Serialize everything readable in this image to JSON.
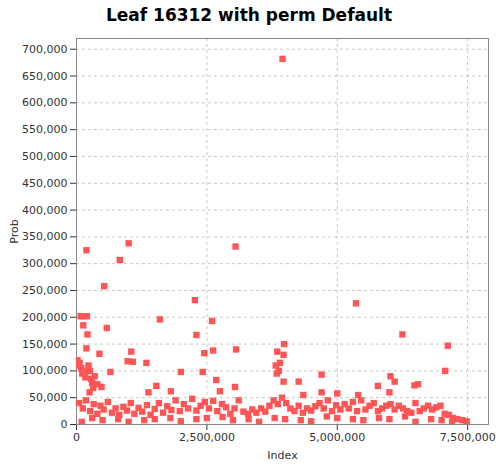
{
  "chart_data": {
    "type": "scatter",
    "title": "Leaf 16312 with perm Default",
    "x_label": "Index",
    "y_label": "Prob",
    "color": "#ff5555",
    "marker": "square",
    "grid": true,
    "xlim": [
      0,
      7900000
    ],
    "ylim": [
      0,
      720000
    ],
    "xticks": [
      0,
      {
        "value": 2500000,
        "label": "2,500,000"
      },
      {
        "value": 5000000,
        "label": "5,000,000"
      },
      {
        "value": 7500000,
        "label": "7,500,000"
      }
    ],
    "yticks": [
      0,
      {
        "value": 50000,
        "label": "50,000"
      },
      {
        "value": 100000,
        "label": "100,000"
      },
      {
        "value": 150000,
        "label": "150,000"
      },
      {
        "value": 200000,
        "label": "200,000"
      },
      {
        "value": 250000,
        "label": "250,000"
      },
      {
        "value": 300000,
        "label": "300,000"
      },
      {
        "value": 350000,
        "label": "350,000"
      },
      {
        "value": 400000,
        "label": "400,000"
      },
      {
        "value": 450000,
        "label": "450,000"
      },
      {
        "value": 500000,
        "label": "500,000"
      },
      {
        "value": 550000,
        "label": "550,000"
      },
      {
        "value": 600000,
        "label": "600,000"
      },
      {
        "value": 650000,
        "label": "650,000"
      },
      {
        "value": 700000,
        "label": "700,000"
      }
    ],
    "x": [
      3950000,
      190000,
      1000000,
      830000,
      3050000,
      530000,
      2270000,
      5360000,
      130000,
      80000,
      200000,
      1600000,
      2600000,
      580000,
      130000,
      6250000,
      2300000,
      210000,
      7120000,
      3980000,
      1050000,
      1340000,
      190000,
      3060000,
      2620000,
      3850000,
      3970000,
      2450000,
      440000,
      650000,
      980000,
      1080000,
      3820000,
      3880000,
      7070000,
      6020000,
      4700000,
      2680000,
      4260000,
      2420000,
      2000000,
      3900000,
      3840000,
      5780000,
      6480000,
      6100000,
      3970000,
      1530000,
      1810000,
      2750000,
      3040000,
      1380000,
      5400000,
      4700000,
      5000000,
      6000000,
      6550000,
      4350000,
      20000,
      40000,
      60000,
      90000,
      110000,
      150000,
      170000,
      230000,
      260000,
      280000,
      300000,
      350000,
      400000,
      480000,
      250000,
      320000,
      50000,
      120000,
      180000,
      260000,
      330000,
      400000,
      460000,
      520000,
      600000,
      680000,
      750000,
      820000,
      900000,
      970000,
      1040000,
      1110000,
      1190000,
      1260000,
      1350000,
      1420000,
      1500000,
      1580000,
      1660000,
      1740000,
      1820000,
      1900000,
      1980000,
      2060000,
      2140000,
      2220000,
      2300000,
      2380000,
      2460000,
      2540000,
      2620000,
      2700000,
      2790000,
      2870000,
      2950000,
      3030000,
      3110000,
      3200000,
      3290000,
      3370000,
      3450000,
      3540000,
      3620000,
      3700000,
      3780000,
      3860000,
      3940000,
      4020000,
      4100000,
      4180000,
      4260000,
      4340000,
      4420000,
      4500000,
      4580000,
      4660000,
      4740000,
      4820000,
      4900000,
      4980000,
      5060000,
      5140000,
      5220000,
      5300000,
      5380000,
      5460000,
      5540000,
      5620000,
      5700000,
      5780000,
      5860000,
      5940000,
      6020000,
      6100000,
      6180000,
      6260000,
      6340000,
      6420000,
      6500000,
      6580000,
      6660000,
      6740000,
      6820000,
      6900000,
      6980000,
      7060000,
      7140000,
      7220000,
      7300000,
      7400000,
      7480000,
      100000,
      500000,
      1000000,
      1500000,
      2000000,
      2500000,
      3000000,
      3500000,
      4000000,
      4500000,
      5000000,
      5500000,
      6000000,
      6500000,
      7000000,
      300000,
      800000,
      1300000,
      1800000,
      2300000,
      2800000,
      3300000,
      3800000,
      4300000,
      4800000,
      5300000,
      5800000,
      6300000,
      6800000,
      7200000
    ],
    "values": [
      682000,
      325000,
      338000,
      307000,
      332000,
      258000,
      232000,
      226000,
      202000,
      202000,
      202000,
      196000,
      193000,
      180000,
      185000,
      168000,
      167000,
      168000,
      147000,
      150000,
      136000,
      115000,
      142000,
      140000,
      138000,
      136000,
      130000,
      133000,
      132000,
      98000,
      118000,
      117000,
      110000,
      100000,
      100000,
      90000,
      93000,
      83000,
      80000,
      98000,
      98000,
      115000,
      95000,
      72000,
      73000,
      80000,
      80000,
      72000,
      62000,
      62000,
      70000,
      60000,
      55000,
      60000,
      58000,
      60000,
      75000,
      55000,
      120000,
      110000,
      115000,
      105000,
      95000,
      100000,
      88000,
      110000,
      100000,
      85000,
      78000,
      90000,
      75000,
      70000,
      60000,
      68000,
      40000,
      30000,
      45000,
      25000,
      38000,
      20000,
      35000,
      28000,
      42000,
      22000,
      30000,
      18000,
      33000,
      26000,
      40000,
      20000,
      31000,
      24000,
      36000,
      18000,
      29000,
      40000,
      22000,
      34000,
      27000,
      45000,
      25000,
      38000,
      30000,
      48000,
      26000,
      35000,
      42000,
      30000,
      44000,
      25000,
      38000,
      32000,
      20000,
      30000,
      45000,
      24000,
      20000,
      28000,
      22000,
      30000,
      24000,
      35000,
      45000,
      38000,
      50000,
      40000,
      30000,
      25000,
      35000,
      22000,
      30000,
      26000,
      34000,
      40000,
      30000,
      45000,
      25000,
      36000,
      28000,
      38000,
      30000,
      42000,
      25000,
      45000,
      28000,
      35000,
      40000,
      25000,
      30000,
      35000,
      38000,
      28000,
      35000,
      30000,
      25000,
      22000,
      40000,
      25000,
      30000,
      35000,
      28000,
      32000,
      35000,
      20000,
      18000,
      12000,
      10000,
      8000,
      6000,
      5000,
      8000,
      5000,
      10000,
      6000,
      12000,
      8000,
      5000,
      10000,
      6000,
      12000,
      8000,
      10000,
      5000,
      8000,
      12000,
      10000,
      8000,
      12000,
      10000,
      14000,
      10000,
      12000,
      8000,
      15000,
      10000,
      12000,
      15000,
      10000,
      5000
    ]
  }
}
